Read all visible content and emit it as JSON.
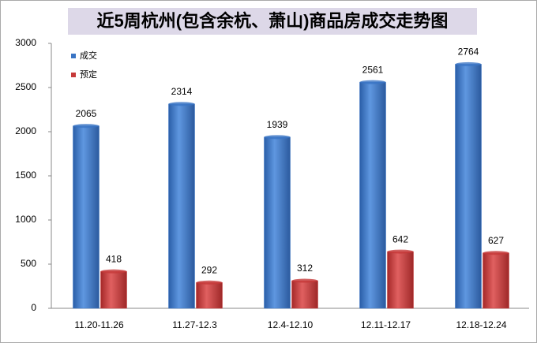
{
  "chart_data": {
    "type": "bar",
    "title": "近5周杭州(包含余杭、萧山)商品房成交走势图",
    "categories": [
      "11.20-11.26",
      "11.27-12.3",
      "12.4-12.10",
      "12.11-12.17",
      "12.18-12.24"
    ],
    "series": [
      {
        "name": "成交",
        "color": "#3a74c4",
        "values": [
          2065,
          2314,
          1939,
          2561,
          2764
        ]
      },
      {
        "name": "预定",
        "color": "#c63a3a",
        "values": [
          418,
          292,
          312,
          642,
          627
        ]
      }
    ],
    "ylim": [
      0,
      3000
    ],
    "yticks": [
      0,
      500,
      1000,
      1500,
      2000,
      2500,
      3000
    ],
    "grid": false,
    "legend": "top-left"
  }
}
